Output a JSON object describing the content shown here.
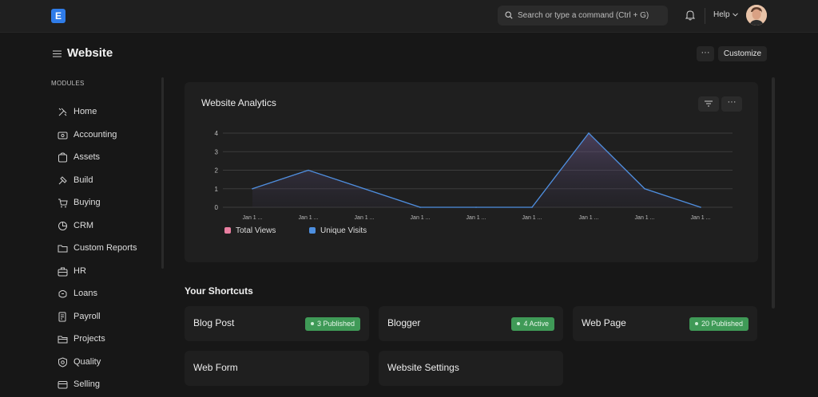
{
  "navbar": {
    "logo_letter": "E",
    "search_placeholder": "Search or type a command (Ctrl + G)",
    "help_label": "Help"
  },
  "page": {
    "title": "Website",
    "more_label": "···",
    "customize_label": "Customize"
  },
  "sidebar": {
    "section_label": "MODULES",
    "items": [
      {
        "label": "Home",
        "icon": "home-icon"
      },
      {
        "label": "Accounting",
        "icon": "accounting-icon"
      },
      {
        "label": "Assets",
        "icon": "assets-icon"
      },
      {
        "label": "Build",
        "icon": "build-icon"
      },
      {
        "label": "Buying",
        "icon": "buying-icon"
      },
      {
        "label": "CRM",
        "icon": "crm-icon"
      },
      {
        "label": "Custom Reports",
        "icon": "folder-icon"
      },
      {
        "label": "HR",
        "icon": "hr-icon"
      },
      {
        "label": "Loans",
        "icon": "loans-icon"
      },
      {
        "label": "Payroll",
        "icon": "payroll-icon"
      },
      {
        "label": "Projects",
        "icon": "projects-icon"
      },
      {
        "label": "Quality",
        "icon": "quality-icon"
      },
      {
        "label": "Selling",
        "icon": "selling-icon"
      }
    ]
  },
  "analytics": {
    "title": "Website Analytics",
    "more_label": "···",
    "legend": [
      {
        "label": "Total Views",
        "color": "#e97fa1"
      },
      {
        "label": "Unique Visits",
        "color": "#4d8fe0"
      }
    ]
  },
  "chart_data": {
    "type": "area",
    "categories": [
      "Jan 1 ...",
      "Jan 1 ...",
      "Jan 1 ...",
      "Jan 1 ...",
      "Jan 1 ...",
      "Jan 1 ...",
      "Jan 1 ...",
      "Jan 1 ...",
      "Jan 1 ..."
    ],
    "series": [
      {
        "name": "Total Views",
        "values": [
          1,
          2,
          1,
          0,
          0,
          0,
          4,
          1,
          0
        ],
        "color": "#e97fa1"
      },
      {
        "name": "Unique Visits",
        "values": [
          1,
          2,
          1,
          0,
          0,
          0,
          4,
          1,
          0
        ],
        "color": "#4d8fe0"
      }
    ],
    "yticks": [
      0,
      1,
      2,
      3,
      4
    ],
    "ylim": [
      0,
      4
    ],
    "grid": true,
    "legend_position": "bottom-left"
  },
  "shortcuts": {
    "title": "Your Shortcuts",
    "items": [
      {
        "label": "Blog Post",
        "badge": "3 Published"
      },
      {
        "label": "Blogger",
        "badge": "4 Active"
      },
      {
        "label": "Web Page",
        "badge": "20 Published"
      },
      {
        "label": "Web Form",
        "badge": ""
      },
      {
        "label": "Website Settings",
        "badge": ""
      }
    ]
  }
}
